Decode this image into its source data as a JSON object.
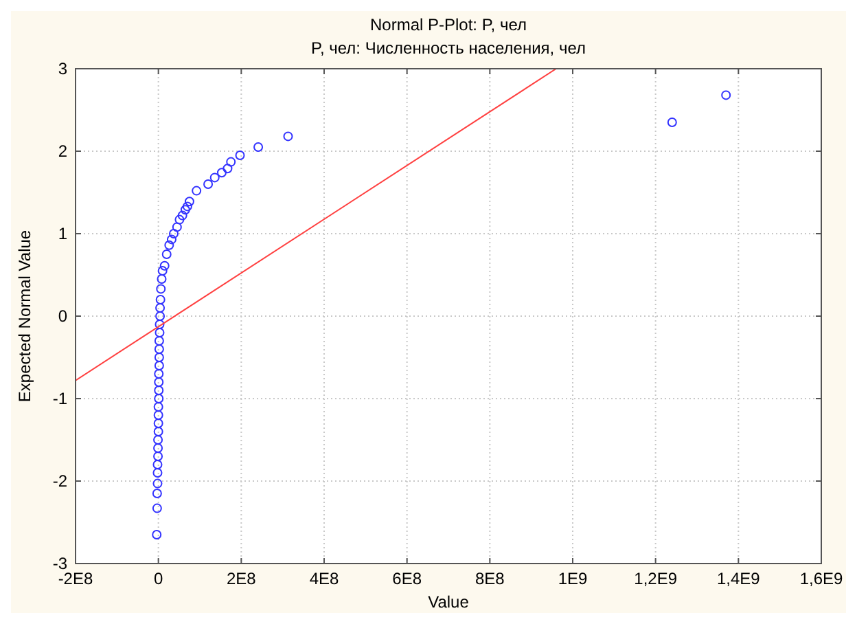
{
  "chart_data": {
    "type": "scatter",
    "title": "Normal P-Plot: P, чел",
    "subtitle": "P, чел: Численность населения, чел",
    "xlabel": "Value",
    "ylabel": "Expected Normal Value",
    "xlim": [
      -200000000.0,
      1600000000.0
    ],
    "ylim": [
      -3,
      3
    ],
    "xticks": [
      {
        "value": -200000000.0,
        "label": "-2E8"
      },
      0,
      {
        "value": 200000000.0,
        "label": "2E8"
      },
      {
        "value": 400000000.0,
        "label": "4E8"
      },
      {
        "value": 600000000.0,
        "label": "6E8"
      },
      {
        "value": 800000000.0,
        "label": "8E8"
      },
      {
        "value": 1000000000.0,
        "label": "1E9"
      },
      {
        "value": 1200000000.0,
        "label": "1,2E9"
      },
      {
        "value": 1400000000.0,
        "label": "1,4E9"
      },
      {
        "value": 1600000000.0,
        "label": "1,6E9"
      }
    ],
    "yticks": [
      -3,
      -2,
      -1,
      0,
      1,
      2,
      3
    ],
    "grid": true,
    "series": [
      {
        "color": "#3333ff",
        "marker": "circle",
        "x": [
          -4000000.0,
          -3000000.0,
          -3000000.0,
          -2000000.0,
          -2000000.0,
          -2000000.0,
          -1000000.0,
          -1000000.0,
          -1000000.0,
          0,
          0,
          0,
          0,
          1000000.0,
          1000000.0,
          1000000.0,
          1000000.0,
          2000000.0,
          2000000.0,
          2000000.0,
          2000000.0,
          3000000.0,
          3000000.0,
          4000000.0,
          4000000.0,
          5000000.0,
          6000000.0,
          8000000.0,
          10000000.0,
          15000000.0,
          20000000.0,
          26000000.0,
          32000000.0,
          37000000.0,
          45000000.0,
          51000000.0,
          58000000.0,
          65000000.0,
          70000000.0,
          75000000.0,
          92000000.0,
          120000000.0,
          136000000.0,
          153000000.0,
          167000000.0,
          175000000.0,
          197000000.0,
          241000000.0,
          313000000.0,
          1240000000.0,
          1370000000.0
        ],
        "values": [
          -2.65,
          -2.33,
          -2.15,
          -2.03,
          -1.9,
          -1.8,
          -1.7,
          -1.6,
          -1.5,
          -1.4,
          -1.3,
          -1.2,
          -1.1,
          -1.0,
          -0.9,
          -0.8,
          -0.7,
          -0.6,
          -0.5,
          -0.4,
          -0.3,
          -0.2,
          -0.1,
          0.0,
          0.1,
          0.2,
          0.33,
          0.45,
          0.55,
          0.61,
          0.75,
          0.86,
          0.93,
          1.0,
          1.08,
          1.17,
          1.22,
          1.29,
          1.33,
          1.39,
          1.52,
          1.6,
          1.68,
          1.74,
          1.79,
          1.87,
          1.95,
          2.05,
          2.18,
          2.35,
          2.68
        ]
      },
      {
        "type": "line",
        "color": "#ff4040",
        "x": [
          -200000000.0,
          960000000.0
        ],
        "values": [
          -0.78,
          3
        ]
      }
    ]
  }
}
